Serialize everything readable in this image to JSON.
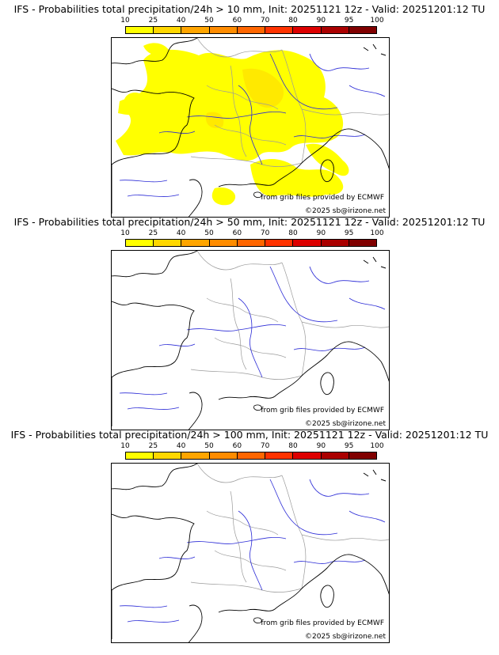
{
  "colorbar": {
    "ticks": [
      "10",
      "25",
      "40",
      "50",
      "60",
      "70",
      "80",
      "90",
      "95",
      "100"
    ],
    "colors": [
      "#ffff00",
      "#ffd700",
      "#ffa500",
      "#ff8c00",
      "#ff6600",
      "#ff3300",
      "#dd0000",
      "#aa0000",
      "#800000"
    ]
  },
  "panels": [
    {
      "title": "IFS - Probabilities total precipitation/24h > 10 mm, Init: 20251121 12z - Valid: 20251201:12 TU",
      "credit_grib": "from grib files provided by ECMWF",
      "credit_copy": "©2025 sb@irizone.net",
      "precip": true
    },
    {
      "title": "IFS - Probabilities total precipitation/24h > 50 mm, Init: 20251121 12z - Valid: 20251201:12 TU",
      "credit_grib": "from grib files provided by ECMWF",
      "credit_copy": "©2025 sb@irizone.net",
      "precip": false
    },
    {
      "title": "IFS - Probabilities total precipitation/24h > 100 mm, Init: 20251121 12z - Valid: 20251201:12 TU",
      "credit_grib": "from grib files provided by ECMWF",
      "credit_copy": "©2025 sb@irizone.net",
      "precip": false
    }
  ],
  "map_colors": {
    "coast": "#000000",
    "rivers": "#2a2ad6",
    "borders": "#9a9a9a",
    "precip": "#ffff00",
    "precip_core": "#ffd700"
  }
}
